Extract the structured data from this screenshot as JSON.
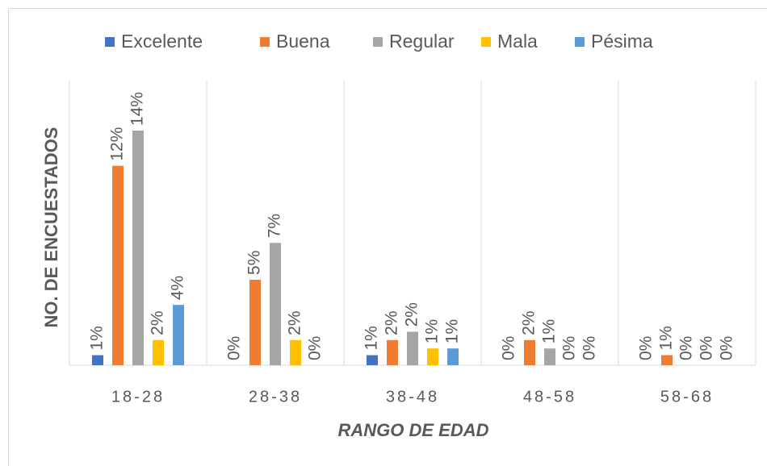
{
  "chart_data": {
    "type": "bar",
    "xlabel": "RANGO DE EDAD",
    "ylabel": "NO. DE ENCUESTADOS",
    "categories": [
      "18-28",
      "28-38",
      "38-48",
      "48-58",
      "58-68"
    ],
    "series": [
      {
        "name": "Excelente",
        "color": "#4472c4",
        "values": [
          0.6,
          0,
          0.6,
          0,
          0
        ],
        "value_labels": [
          "1%",
          "0%",
          "1%",
          "0%",
          "0%"
        ]
      },
      {
        "name": "Buena",
        "color": "#ed7d31",
        "values": [
          11.9,
          5.1,
          1.5,
          1.5,
          0.6
        ],
        "value_labels": [
          "12%",
          "5%",
          "2%",
          "2%",
          "1%"
        ]
      },
      {
        "name": "Regular",
        "color": "#a5a5a5",
        "values": [
          14,
          7.3,
          2,
          1,
          0
        ],
        "value_labels": [
          "14%",
          "7%",
          "2%",
          "1%",
          "0%"
        ]
      },
      {
        "name": "Mala",
        "color": "#ffc000",
        "values": [
          1.5,
          1.5,
          1,
          0,
          0
        ],
        "value_labels": [
          "2%",
          "2%",
          "1%",
          "0%",
          "0%"
        ]
      },
      {
        "name": "Pésima",
        "color": "#5b9bd5",
        "values": [
          3.6,
          0,
          1,
          0,
          0
        ],
        "value_labels": [
          "4%",
          "0%",
          "1%",
          "0%",
          "0%"
        ]
      }
    ],
    "legend": "top",
    "grid": "vertical"
  }
}
